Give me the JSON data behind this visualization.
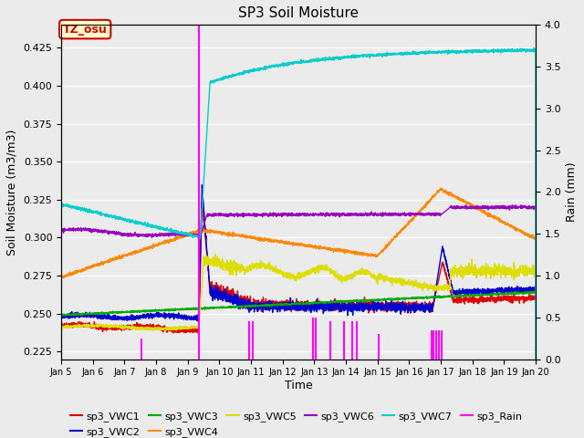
{
  "title": "SP3 Soil Moisture",
  "xlabel": "Time",
  "ylabel_left": "Soil Moisture (m3/m3)",
  "ylabel_right": "Rain (mm)",
  "xlim_days": [
    5,
    20
  ],
  "ylim_left": [
    0.22,
    0.44
  ],
  "ylim_right": [
    0.0,
    4.0
  ],
  "background_color": "#ebebeb",
  "annotation_label": "TZ_osu",
  "annotation_color": "#cc0000",
  "annotation_bg": "#ffffcc",
  "series_colors": {
    "VWC1": "#dd0000",
    "VWC2": "#0000cc",
    "VWC3": "#00aa00",
    "VWC4": "#ff8800",
    "VWC5": "#dddd00",
    "VWC6": "#9900bb",
    "VWC7": "#00cccc",
    "Rain": "#ff00ff"
  },
  "x_tick_labels": [
    "Jan 5",
    "Jan 6",
    "Jan 7",
    "Jan 8",
    "Jan 9",
    "Jan 10",
    "Jan 11",
    "Jan 12",
    "Jan 13",
    "Jan 14",
    "Jan 15",
    "Jan 16",
    "Jan 17",
    "Jan 18",
    "Jan 19",
    "Jan 20"
  ],
  "x_tick_positions": [
    5,
    6,
    7,
    8,
    9,
    10,
    11,
    12,
    13,
    14,
    15,
    16,
    17,
    18,
    19,
    20
  ],
  "rain_events": [
    [
      7.55,
      0.25
    ],
    [
      9.35,
      4.0
    ],
    [
      10.95,
      0.45
    ],
    [
      11.05,
      0.45
    ],
    [
      12.95,
      0.5
    ],
    [
      13.05,
      0.5
    ],
    [
      13.5,
      0.45
    ],
    [
      13.95,
      0.45
    ],
    [
      14.2,
      0.45
    ],
    [
      14.35,
      0.45
    ],
    [
      15.05,
      0.3
    ],
    [
      16.7,
      0.35
    ],
    [
      16.78,
      0.35
    ],
    [
      16.86,
      0.35
    ],
    [
      16.94,
      0.35
    ],
    [
      17.02,
      0.35
    ]
  ]
}
